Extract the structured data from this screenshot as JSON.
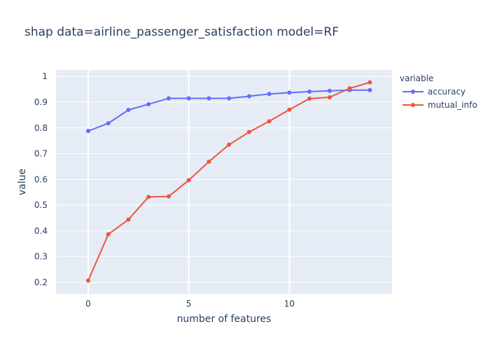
{
  "chart_data": {
    "type": "line",
    "title": "shap data=airline_passenger_satisfaction model=RF",
    "xlabel": "number of features",
    "ylabel": "value",
    "x": [
      0,
      1,
      2,
      3,
      4,
      5,
      6,
      7,
      8,
      9,
      10,
      11,
      12,
      13,
      14
    ],
    "xlim": [
      -1.6,
      15.1
    ],
    "ylim": [
      0.155,
      1.025
    ],
    "xticks": [
      0,
      5,
      10
    ],
    "xtick_labels": [
      "0",
      "5",
      "10"
    ],
    "yticks": [
      0.2,
      0.3,
      0.4,
      0.5,
      0.6,
      0.7,
      0.8,
      0.9,
      1.0
    ],
    "ytick_labels": [
      "0.2",
      "0.3",
      "0.4",
      "0.5",
      "0.6",
      "0.7",
      "0.8",
      "0.9",
      "1"
    ],
    "grid": true,
    "legend": {
      "title": "variable",
      "placement": "right"
    },
    "series": [
      {
        "name": "accuracy",
        "color": "#636efa",
        "values": [
          0.788,
          0.818,
          0.87,
          0.892,
          0.915,
          0.915,
          0.915,
          0.915,
          0.923,
          0.932,
          0.937,
          0.941,
          0.944,
          0.947,
          0.947
        ]
      },
      {
        "name": "mutual_info",
        "color": "#ef553b",
        "values": [
          0.207,
          0.387,
          0.444,
          0.532,
          0.534,
          0.597,
          0.669,
          0.735,
          0.784,
          0.826,
          0.871,
          0.914,
          0.919,
          0.954,
          0.977
        ]
      }
    ]
  }
}
